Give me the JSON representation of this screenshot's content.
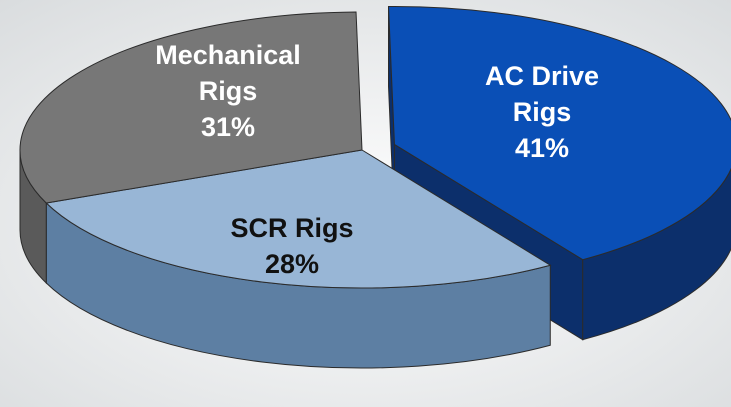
{
  "chart_data": {
    "type": "pie",
    "title": "",
    "slices": [
      {
        "label_lines": [
          "AC Drive",
          "Rigs"
        ],
        "percent_label": "41%",
        "value": 41,
        "top_color": "#0a4fb6",
        "side_color": "#0c2f6b",
        "text_color": "#ffffff",
        "exploded": true
      },
      {
        "label_lines": [
          "SCR Rigs"
        ],
        "percent_label": "28%",
        "value": 28,
        "top_color": "#98b6d6",
        "side_color": "#5d7fa3",
        "text_color": "#111111",
        "exploded": false
      },
      {
        "label_lines": [
          "Mechanical",
          "Rigs"
        ],
        "percent_label": "31%",
        "value": 31,
        "top_color": "#777777",
        "side_color": "#5a5a5a",
        "text_color": "#ffffff",
        "exploded": false
      }
    ]
  }
}
